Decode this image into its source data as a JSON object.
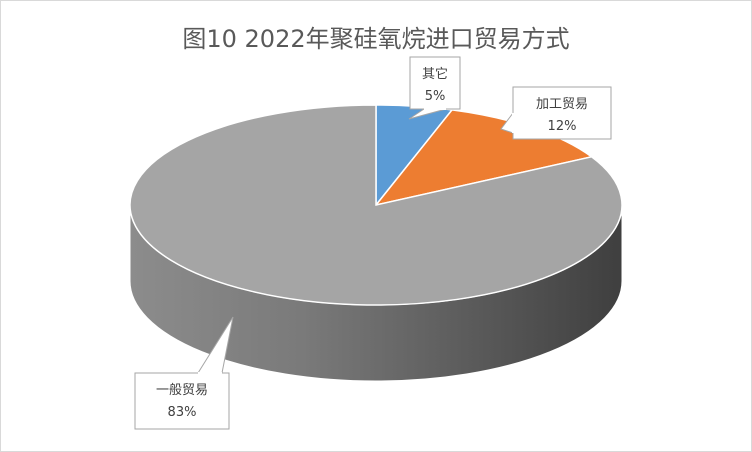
{
  "chart_data": {
    "type": "pie",
    "title": "图10  2022年聚硅氧烷进口贸易方式",
    "categories": [
      "其它",
      "加工贸易",
      "一般贸易"
    ],
    "values": [
      5,
      12,
      83
    ],
    "labels": [
      "5%",
      "12%",
      "83%"
    ],
    "colors": [
      "#5b9bd5",
      "#ed7d31",
      "#a5a5a5"
    ],
    "style": "3d-pie",
    "legend": "none"
  }
}
